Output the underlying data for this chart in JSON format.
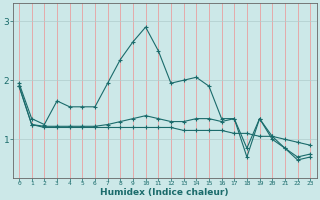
{
  "xlabel": "Humidex (Indice chaleur)",
  "bg_color": "#cce8e8",
  "line_color": "#1a6b6b",
  "grid_color_x": "#e8a0a0",
  "grid_color_y": "#b0cccc",
  "x_ticks": [
    0,
    1,
    2,
    3,
    4,
    5,
    6,
    7,
    8,
    9,
    10,
    11,
    12,
    13,
    14,
    15,
    16,
    17,
    18,
    19,
    20,
    21,
    22,
    23
  ],
  "y_ticks": [
    1,
    2,
    3
  ],
  "ylim": [
    0.35,
    3.3
  ],
  "xlim": [
    -0.5,
    23.5
  ],
  "line1": {
    "x": [
      0,
      1,
      2,
      3,
      4,
      5,
      6,
      7,
      8,
      9,
      10,
      11,
      12,
      13,
      14,
      15,
      16,
      17,
      18,
      19,
      20,
      21,
      22,
      23
    ],
    "y": [
      1.95,
      1.35,
      1.25,
      1.65,
      1.55,
      1.55,
      1.55,
      1.95,
      2.35,
      2.65,
      2.9,
      2.5,
      1.95,
      2.0,
      2.05,
      1.9,
      1.35,
      1.35,
      0.7,
      1.35,
      1.0,
      0.85,
      0.65,
      0.7
    ]
  },
  "line2": {
    "x": [
      0,
      1,
      2,
      3,
      4,
      5,
      6,
      7,
      8,
      9,
      10,
      11,
      12,
      13,
      14,
      15,
      16,
      17,
      18,
      19,
      20,
      21,
      22,
      23
    ],
    "y": [
      1.9,
      1.25,
      1.2,
      1.2,
      1.2,
      1.2,
      1.2,
      1.2,
      1.2,
      1.2,
      1.2,
      1.2,
      1.2,
      1.15,
      1.15,
      1.15,
      1.15,
      1.1,
      1.1,
      1.05,
      1.05,
      1.0,
      0.95,
      0.9
    ]
  },
  "line3": {
    "x": [
      0,
      1,
      2,
      3,
      4,
      5,
      6,
      7,
      8,
      9,
      10,
      11,
      12,
      13,
      14,
      15,
      16,
      17,
      18,
      19,
      20,
      21,
      22,
      23
    ],
    "y": [
      1.9,
      1.25,
      1.22,
      1.22,
      1.22,
      1.22,
      1.22,
      1.25,
      1.3,
      1.35,
      1.4,
      1.35,
      1.3,
      1.3,
      1.35,
      1.35,
      1.3,
      1.35,
      0.85,
      1.35,
      1.05,
      0.85,
      0.7,
      0.75
    ]
  }
}
